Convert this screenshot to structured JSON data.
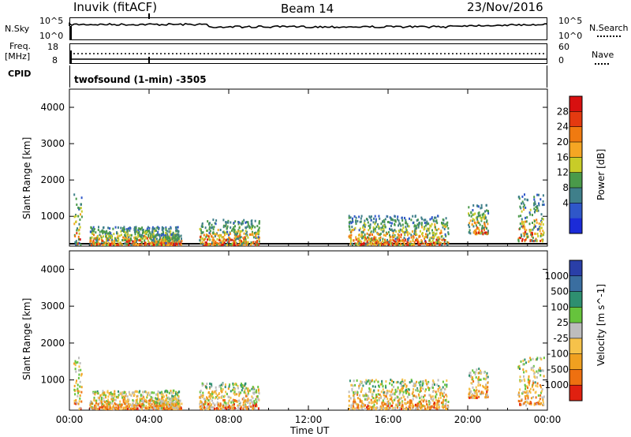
{
  "header": {
    "station": "Inuvik (fitACF)",
    "beam": "Beam 14",
    "date": "23/Nov/2016"
  },
  "top_panels": {
    "nsky_label": "N.Sky",
    "nsky_ticks": [
      "10^5",
      "10^0"
    ],
    "nsearch_label": "N.Search",
    "nsearch_ticks": [
      "10^5",
      "10^0"
    ],
    "freq_label_1": "Freq.",
    "freq_label_2": "[MHz]",
    "freq_ticks": [
      "18",
      "8"
    ],
    "nave_label": "Nave",
    "nave_ticks": [
      "60",
      "0"
    ],
    "cpid_label": "CPID",
    "cpid_value": "twofsound (1-min) -3505"
  },
  "x_axis": {
    "ticks": [
      "00:00",
      "04:00",
      "08:00",
      "12:00",
      "16:00",
      "20:00",
      "00:00"
    ],
    "title": "Time UT"
  },
  "chart_data": [
    {
      "type": "heatmap",
      "panel": "power",
      "ylabel": "Slant Range [km]",
      "ylim": [
        180,
        4500
      ],
      "y_ticks": [
        1000,
        2000,
        3000,
        4000
      ],
      "colorbar_label": "Power [dB]",
      "colorbar_ticks": [
        "4",
        "8",
        "12",
        "16",
        "20",
        "24",
        "28"
      ],
      "colors": [
        "#1b2bd8",
        "#2f57c9",
        "#3f7f8a",
        "#4a9a4a",
        "#c8cc28",
        "#f5a623",
        "#f07a10",
        "#e43a10",
        "#d81010"
      ],
      "x_hours": [
        0,
        1,
        2,
        3,
        4,
        5,
        6,
        7,
        8,
        9,
        10,
        11,
        12,
        13,
        14,
        15,
        16,
        17,
        18,
        19,
        20,
        21,
        22,
        23
      ],
      "echo_bands_km": [
        {
          "hours": [
            0.2,
            0.6
          ],
          "range": [
            200,
            1600
          ]
        },
        {
          "hours": [
            1.0,
            5.5
          ],
          "range": [
            200,
            700
          ]
        },
        {
          "hours": [
            4.2,
            5.6
          ],
          "range": [
            200,
            500
          ]
        },
        {
          "hours": [
            6.5,
            9.5
          ],
          "range": [
            200,
            900
          ]
        },
        {
          "hours": [
            14.0,
            19.0
          ],
          "range": [
            200,
            1000
          ]
        },
        {
          "hours": [
            20.0,
            21.0
          ],
          "range": [
            500,
            1300
          ]
        },
        {
          "hours": [
            22.5,
            23.8
          ],
          "range": [
            300,
            1600
          ]
        }
      ]
    },
    {
      "type": "heatmap",
      "panel": "velocity",
      "ylabel": "Slant Range [km]",
      "ylim": [
        180,
        4500
      ],
      "y_ticks": [
        1000,
        2000,
        3000,
        4000
      ],
      "colorbar_label": "Velocity [m s^-1]",
      "colorbar_ticks": [
        "1000",
        "500",
        "100",
        "25",
        "-25",
        "-100",
        "-500",
        "-1000"
      ],
      "colors": [
        "#2a3fa8",
        "#3a6ea0",
        "#2e8f70",
        "#66c33c",
        "#bdbdbd",
        "#f6c24a",
        "#f0a020",
        "#ee7010",
        "#e02010"
      ]
    }
  ]
}
